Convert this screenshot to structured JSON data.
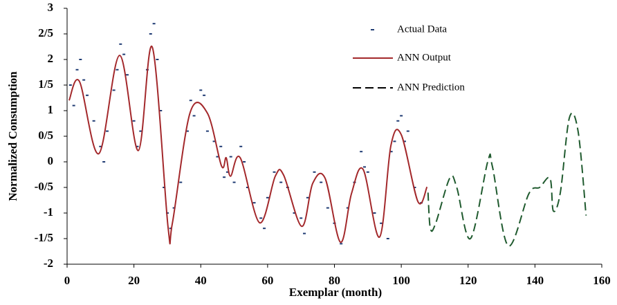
{
  "chart_data": {
    "type": "line",
    "x_label": "Exemplar (month)",
    "y_label": "Normalized Consumption",
    "xlim": [
      0,
      160
    ],
    "xticks": [
      0,
      20,
      40,
      60,
      80,
      100,
      120,
      140,
      160
    ],
    "ylim": [
      -2,
      3
    ],
    "yticks": [
      -2,
      {
        "value": -1.5,
        "label": "-1/5"
      },
      -1,
      {
        "value": -0.5,
        "label": "-0/5"
      },
      0,
      {
        "value": 0.5,
        "label": "0/5"
      },
      1,
      {
        "value": 1.5,
        "label": "1/5"
      },
      2,
      {
        "value": 2.5,
        "label": "2/5"
      },
      3
    ],
    "series": [
      {
        "name": "Actual Data",
        "style": "marker",
        "color": "#1f3b73",
        "x": [
          1,
          2,
          3,
          4,
          5,
          6,
          8,
          10,
          11,
          12,
          14,
          15,
          16,
          17,
          18,
          20,
          21,
          22,
          24,
          25,
          26,
          27,
          28,
          29,
          30,
          31,
          32,
          34,
          36,
          37,
          38,
          40,
          41,
          42,
          44,
          45,
          46,
          47,
          48,
          49,
          50,
          52,
          53,
          54,
          56,
          58,
          59,
          60,
          62,
          64,
          66,
          68,
          70,
          71,
          72,
          74,
          76,
          78,
          80,
          82,
          84,
          86,
          88,
          89,
          90,
          92,
          94,
          96,
          97,
          98,
          99,
          100,
          101,
          102,
          104,
          106
        ],
        "values": [
          1.5,
          1.1,
          1.8,
          2.0,
          1.6,
          1.3,
          0.8,
          0.3,
          0,
          0.6,
          1.4,
          1.8,
          2.3,
          2.1,
          1.7,
          0.8,
          0.3,
          0.6,
          1.8,
          2.5,
          2.7,
          2.0,
          1.0,
          -0.5,
          -1.0,
          -1.3,
          -0.9,
          -0.4,
          0.6,
          1.2,
          0.9,
          1.4,
          1.3,
          0.6,
          0.4,
          0.1,
          0.3,
          -0.3,
          -0.2,
          0.1,
          -0.4,
          0.3,
          0.0,
          -0.5,
          -0.8,
          -1.1,
          -1.3,
          -0.7,
          -0.2,
          -0.4,
          -0.5,
          -1.0,
          -1.1,
          -1.4,
          -0.7,
          -0.2,
          -0.4,
          -0.9,
          -1.2,
          -1.6,
          -0.9,
          -0.4,
          0.2,
          -0.1,
          -0.2,
          -1.0,
          -1.2,
          -1.5,
          0.2,
          0.4,
          0.8,
          0.9,
          0.4,
          0.6,
          -0.5,
          -0.8
        ]
      },
      {
        "name": "ANN Output",
        "style": "solid",
        "color": "#a3282b",
        "x": [
          0.6,
          3.7,
          9.5,
          15.7,
          21.3,
          25.5,
          30.2,
          31.5,
          36.8,
          42,
          46.2,
          47.6,
          48.9,
          51.8,
          57.6,
          62.3,
          64.8,
          70.2,
          73.5,
          77.2,
          81.8,
          85.1,
          88.6,
          93.5,
          96.9,
          100,
          105,
          107.7
        ],
        "values": [
          1.2,
          1.57,
          0.16,
          2.08,
          0.22,
          2.24,
          -1.27,
          -1.2,
          0.96,
          0.95,
          -0.08,
          0.08,
          -0.28,
          0.08,
          -1.19,
          -0.28,
          -0.26,
          -1.26,
          -0.42,
          -0.32,
          -1.57,
          -0.62,
          -0.15,
          -1.47,
          0.32,
          0.53,
          -0.78,
          -0.49
        ]
      },
      {
        "name": "ANN Prediction",
        "style": "dashed",
        "color": "#1f5a2e",
        "x": [
          108,
          108.7,
          110.3,
          114.5,
          116.6,
          120.7,
          125.9,
          127.3,
          132,
          138.2,
          141.4,
          144.5,
          145.5,
          147.6,
          150.3,
          152.9,
          155.3
        ],
        "values": [
          -0.6,
          -1.3,
          -1.2,
          -0.32,
          -0.5,
          -1.5,
          0.01,
          -0.1,
          -1.64,
          -0.62,
          -0.5,
          -0.32,
          -0.96,
          -0.6,
          0.86,
          0.6,
          -1.05
        ]
      }
    ]
  }
}
